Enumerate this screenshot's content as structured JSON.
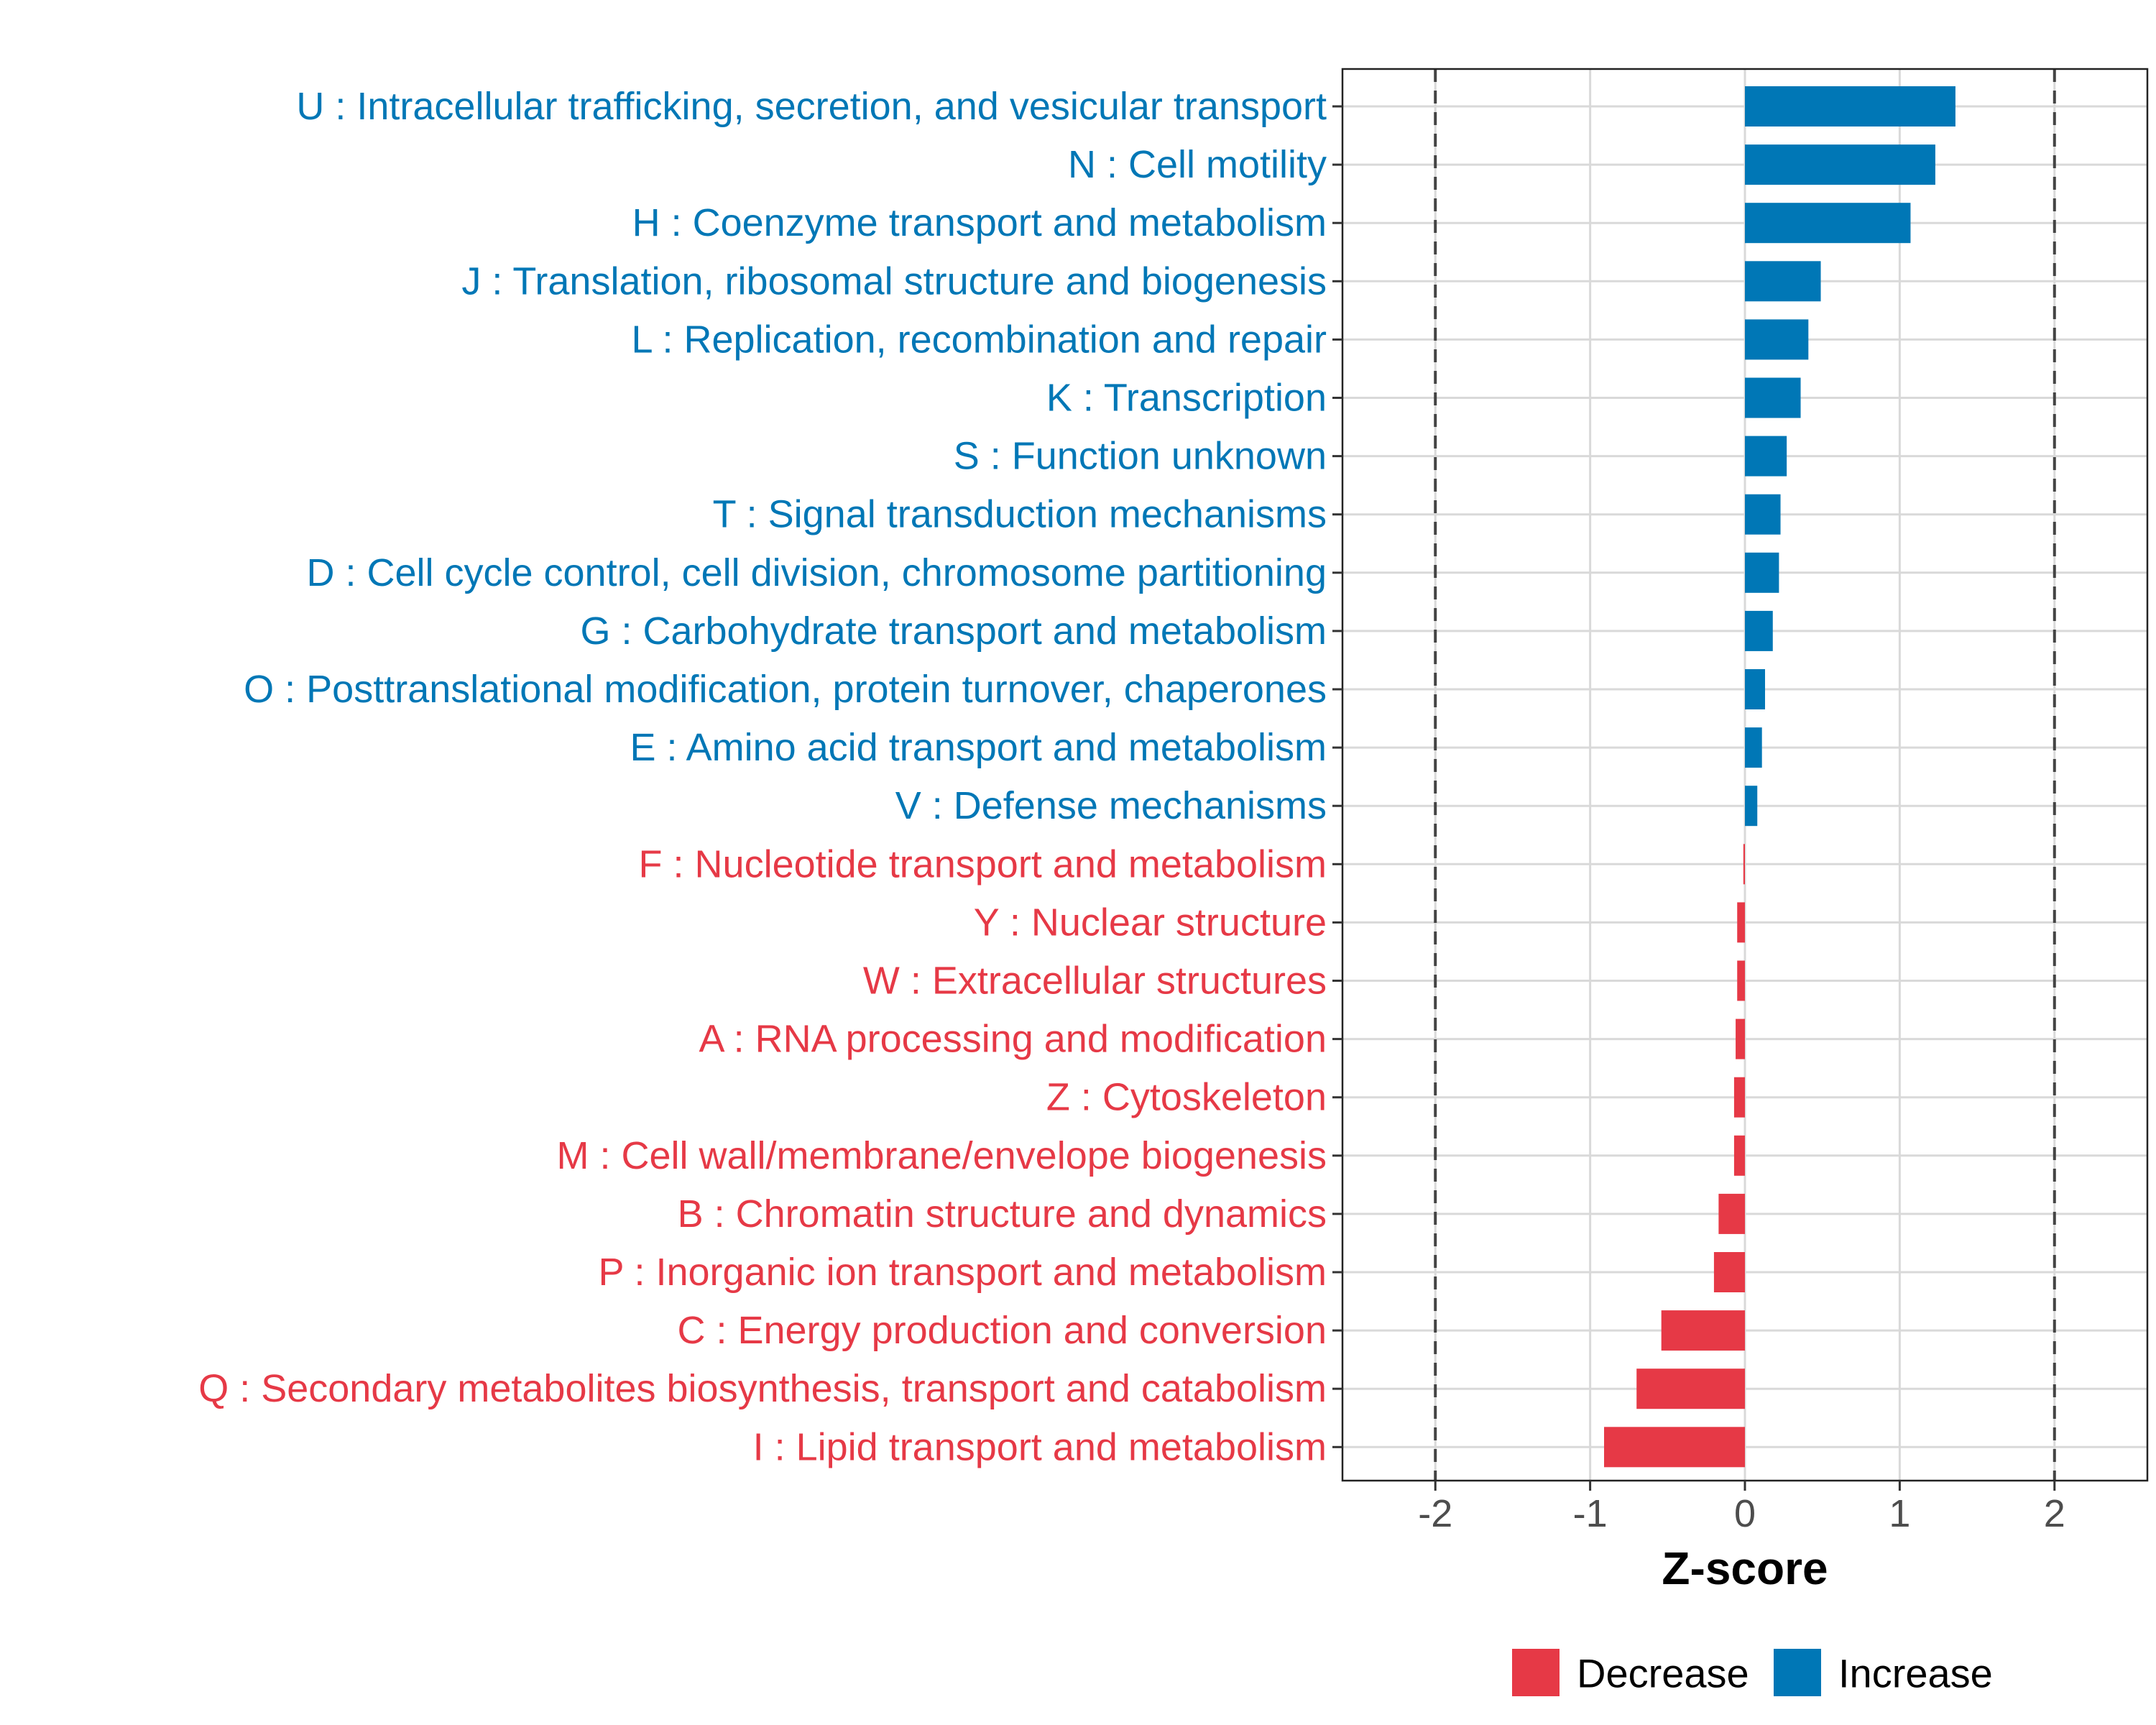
{
  "chart_data": {
    "type": "bar",
    "orientation": "horizontal",
    "xlabel": "Z-score",
    "xlim": [
      -2.6,
      2.6
    ],
    "xticks": [
      -2,
      -1,
      0,
      1,
      2
    ],
    "xtick_labels": [
      "-2",
      "-1",
      "0",
      "1",
      "2"
    ],
    "reference_lines": [
      -2,
      2
    ],
    "grid": true,
    "legend_position": "bottom",
    "colors": {
      "Decrease": "#E63946",
      "Increase": "#0077B6"
    },
    "legend": [
      {
        "name": "Decrease",
        "color": "#E63946"
      },
      {
        "name": "Increase",
        "color": "#0077B6"
      }
    ],
    "categories": [
      {
        "label": "U : Intracellular trafficking, secretion, and vesicular transport",
        "value": 1.36,
        "group": "Increase"
      },
      {
        "label": "N : Cell motility",
        "value": 1.23,
        "group": "Increase"
      },
      {
        "label": "H : Coenzyme transport and metabolism",
        "value": 1.07,
        "group": "Increase"
      },
      {
        "label": "J : Translation, ribosomal structure and biogenesis",
        "value": 0.49,
        "group": "Increase"
      },
      {
        "label": "L : Replication, recombination and repair",
        "value": 0.41,
        "group": "Increase"
      },
      {
        "label": "K : Transcription",
        "value": 0.36,
        "group": "Increase"
      },
      {
        "label": "S : Function unknown",
        "value": 0.27,
        "group": "Increase"
      },
      {
        "label": "T : Signal transduction mechanisms",
        "value": 0.23,
        "group": "Increase"
      },
      {
        "label": "D : Cell cycle control, cell division, chromosome partitioning",
        "value": 0.22,
        "group": "Increase"
      },
      {
        "label": "G : Carbohydrate transport and metabolism",
        "value": 0.18,
        "group": "Increase"
      },
      {
        "label": "O : Posttranslational modification, protein turnover, chaperones",
        "value": 0.13,
        "group": "Increase"
      },
      {
        "label": "E : Amino acid transport and metabolism",
        "value": 0.11,
        "group": "Increase"
      },
      {
        "label": "V : Defense mechanisms",
        "value": 0.08,
        "group": "Increase"
      },
      {
        "label": "F : Nucleotide transport and metabolism",
        "value": -0.01,
        "group": "Decrease"
      },
      {
        "label": "Y : Nuclear structure",
        "value": -0.05,
        "group": "Decrease"
      },
      {
        "label": "W : Extracellular structures",
        "value": -0.05,
        "group": "Decrease"
      },
      {
        "label": "A : RNA processing and modification",
        "value": -0.06,
        "group": "Decrease"
      },
      {
        "label": "Z : Cytoskeleton",
        "value": -0.07,
        "group": "Decrease"
      },
      {
        "label": "M : Cell wall/membrane/envelope biogenesis",
        "value": -0.07,
        "group": "Decrease"
      },
      {
        "label": "B : Chromatin structure and dynamics",
        "value": -0.17,
        "group": "Decrease"
      },
      {
        "label": "P : Inorganic ion transport and metabolism",
        "value": -0.2,
        "group": "Decrease"
      },
      {
        "label": "C : Energy production and conversion",
        "value": -0.54,
        "group": "Decrease"
      },
      {
        "label": "Q : Secondary metabolites biosynthesis, transport and catabolism",
        "value": -0.7,
        "group": "Decrease"
      },
      {
        "label": "I : Lipid transport and metabolism",
        "value": -0.91,
        "group": "Decrease"
      }
    ]
  }
}
